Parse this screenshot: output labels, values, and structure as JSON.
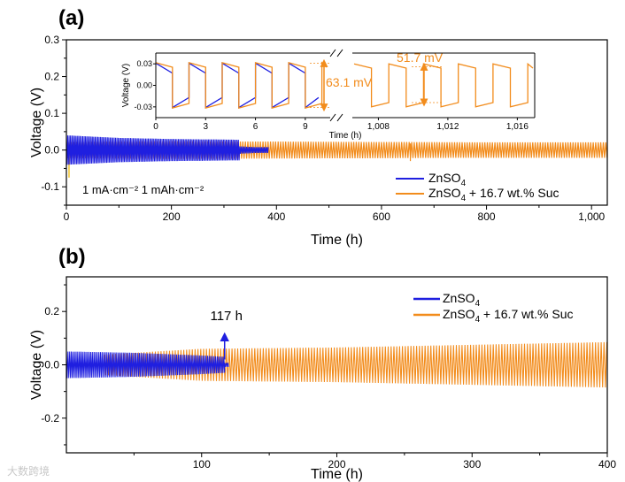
{
  "chart_data": [
    {
      "panel": "(a)",
      "type": "line",
      "xlabel": "Time (h)",
      "ylabel": "Voltage (V)",
      "xlim": [
        0,
        1030
      ],
      "ylim": [
        -0.15,
        0.3
      ],
      "xticks": [
        0,
        200,
        400,
        600,
        800,
        1000
      ],
      "xtick_labels": [
        "0",
        "200",
        "400",
        "600",
        "800",
        "1,000"
      ],
      "yticks": [
        -0.1,
        0.0,
        0.1,
        0.2,
        0.3
      ],
      "ytick_labels": [
        "-0.1",
        "0.0",
        "0.1",
        "0.2",
        "0.3"
      ],
      "condition_text": "1 mA·cm⁻² 1 mAh·cm⁻²",
      "legend_position": "bottom-right",
      "series": [
        {
          "name": "ZnSO4",
          "label_main": "ZnSO",
          "label_sub": "4",
          "label_rest": "",
          "color": "#1f1fe0",
          "envelope": [
            [
              0,
              0.04
            ],
            [
              100,
              0.033
            ],
            [
              200,
              0.03
            ],
            [
              330,
              0.028
            ]
          ],
          "tail": [
            [
              330,
              0.01
            ],
            [
              360,
              0.008
            ],
            [
              385,
              0.008
            ]
          ],
          "end_time": 385
        },
        {
          "name": "ZnSO4 + 16.7 wt.% Suc",
          "label_main": "ZnSO",
          "label_sub": "4",
          "label_rest": " + 16.7 wt.% Suc",
          "color": "#f28c1c",
          "envelope": [
            [
              0,
              0.022
            ],
            [
              200,
              0.024
            ],
            [
              400,
              0.023
            ],
            [
              600,
              0.022
            ],
            [
              800,
              0.021
            ],
            [
              1030,
              0.021
            ]
          ],
          "end_time": 1030
        }
      ],
      "inset": {
        "ylabel": "Voltage (V)",
        "xlabel": "Time (h)",
        "left_xlim": [
          0,
          10.5
        ],
        "left_xticks": [
          0,
          3,
          6,
          9
        ],
        "left_xtick_labels": [
          "0",
          "3",
          "6",
          "9"
        ],
        "right_xlim": [
          1006.5,
          1017
        ],
        "right_xticks": [
          1008,
          1012,
          1016
        ],
        "right_xtick_labels": [
          "1,008",
          "1,012",
          "1,016"
        ],
        "ylim": [
          -0.045,
          0.045
        ],
        "yticks": [
          -0.03,
          0.0,
          0.03
        ],
        "ytick_labels": [
          "-0.03",
          "0.00",
          "0.03"
        ],
        "square_wave_period_h": 2,
        "znso4_amplitude_V": 0.031,
        "suc_amplitude_V": 0.0316,
        "annotation_left": "63.1 mV",
        "annotation_right": "51.7 mV"
      }
    },
    {
      "panel": "(b)",
      "type": "line",
      "xlabel": "Time (h)",
      "ylabel": "Voltage (V)",
      "xlim": [
        0,
        400
      ],
      "ylim": [
        -0.33,
        0.33
      ],
      "xticks": [
        100,
        200,
        300,
        400
      ],
      "xtick_labels": [
        "100",
        "200",
        "300",
        "400"
      ],
      "yticks": [
        -0.2,
        0.0,
        0.2
      ],
      "ytick_labels": [
        "-0.2",
        "0.0",
        "0.2"
      ],
      "legend_position": "top-right",
      "annotation": "117 h",
      "annotation_x": 117,
      "series": [
        {
          "name": "ZnSO4",
          "label_main": "ZnSO",
          "label_sub": "4",
          "label_rest": "",
          "color": "#1f1fe0",
          "envelope": [
            [
              0,
              0.05
            ],
            [
              50,
              0.045
            ],
            [
              100,
              0.035
            ],
            [
              117,
              0.03
            ]
          ],
          "end_time": 120
        },
        {
          "name": "ZnSO4 + 16.7 wt.% Suc",
          "label_main": "ZnSO",
          "label_sub": "4",
          "label_rest": " + 16.7 wt.% Suc",
          "color": "#f28c1c",
          "envelope": [
            [
              0,
              0.03
            ],
            [
              100,
              0.06
            ],
            [
              200,
              0.065
            ],
            [
              300,
              0.075
            ],
            [
              400,
              0.085
            ]
          ],
          "end_time": 400
        }
      ]
    }
  ],
  "watermark": "大数跨境"
}
